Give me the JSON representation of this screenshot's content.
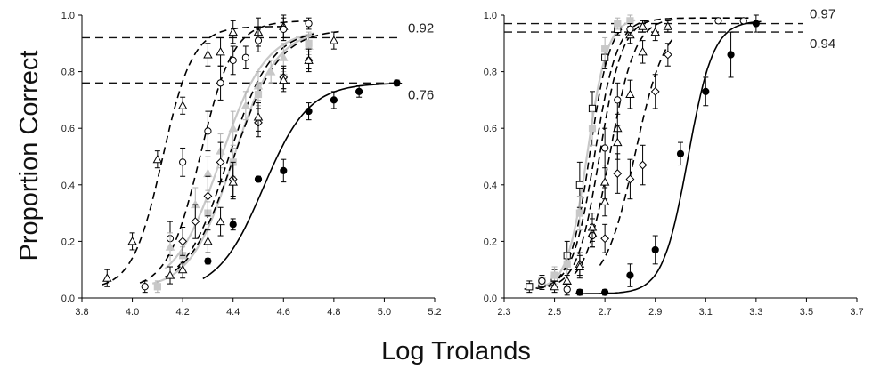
{
  "figure": {
    "ylabel": "Proportion Correct",
    "xlabel": "Log Trolands"
  },
  "chart_data": [
    {
      "type": "scatter",
      "title": "",
      "xlim": [
        3.8,
        5.2
      ],
      "ylim": [
        0.0,
        1.0
      ],
      "xticks": [
        "3.8",
        "4.0",
        "4.2",
        "4.4",
        "4.6",
        "4.8",
        "5.0",
        "5.2"
      ],
      "yticks": [
        "0.0",
        "0.2",
        "0.4",
        "0.6",
        "0.8",
        "1.0"
      ],
      "grid": false,
      "reference_lines": [
        {
          "y": 0.92,
          "label": "0.92"
        },
        {
          "y": 0.76,
          "label": "0.76"
        }
      ],
      "series": [
        {
          "marker": "triangle-open",
          "color": "#000000",
          "line": "dashed",
          "fit": {
            "lower": 0.03,
            "upper": 0.96,
            "threshold": 4.12,
            "slope": 0.06
          },
          "x": [
            3.9,
            4.0,
            4.1,
            4.2,
            4.3,
            4.35,
            4.4,
            4.5,
            4.6
          ],
          "y": [
            0.07,
            0.2,
            0.49,
            0.68,
            0.86,
            0.87,
            0.94,
            0.94,
            0.96
          ],
          "err": [
            0.03,
            0.03,
            0.03,
            0.03,
            0.04,
            0.05,
            0.04,
            0.05,
            0.04
          ]
        },
        {
          "marker": "circle-open",
          "color": "#000000",
          "line": "dashed",
          "fit": {
            "lower": 0.03,
            "upper": 0.98,
            "threshold": 4.27,
            "slope": 0.065
          },
          "x": [
            4.05,
            4.15,
            4.2,
            4.3,
            4.35,
            4.4,
            4.45,
            4.5,
            4.6,
            4.7
          ],
          "y": [
            0.04,
            0.21,
            0.48,
            0.59,
            0.76,
            0.84,
            0.85,
            0.91,
            0.95,
            0.97
          ],
          "err": [
            0.02,
            0.06,
            0.05,
            0.07,
            0.06,
            0.05,
            0.04,
            0.04,
            0.04,
            0.02
          ]
        },
        {
          "marker": "triangle-filled",
          "color": "#c8c8c8",
          "line": "solid",
          "fit": {
            "lower": 0.03,
            "upper": 0.95,
            "threshold": 4.35,
            "slope": 0.09
          },
          "x": [
            4.15,
            4.25,
            4.3,
            4.35,
            4.4,
            4.45,
            4.5,
            4.55,
            4.6,
            4.7
          ],
          "y": [
            0.18,
            0.33,
            0.44,
            0.52,
            0.6,
            0.68,
            0.75,
            0.8,
            0.85,
            0.89
          ],
          "err": [
            0.05,
            0.06,
            0.06,
            0.06,
            0.06,
            0.05,
            0.05,
            0.04,
            0.05,
            0.04
          ]
        },
        {
          "marker": "square-filled",
          "color": "#c8c8c8",
          "line": "solid",
          "fit": {
            "lower": 0.03,
            "upper": 0.95,
            "threshold": 4.4,
            "slope": 0.085
          },
          "x": [
            4.1,
            4.2,
            4.3,
            4.4,
            4.5,
            4.6,
            4.7
          ],
          "y": [
            0.04,
            0.15,
            0.3,
            0.48,
            0.72,
            0.78,
            0.9
          ],
          "err": [
            0.02,
            0.03,
            0.04,
            0.05,
            0.04,
            0.04,
            0.04
          ]
        },
        {
          "marker": "diamond-open",
          "color": "#000000",
          "line": "dashed",
          "fit": {
            "lower": 0.03,
            "upper": 0.95,
            "threshold": 4.38,
            "slope": 0.085
          },
          "x": [
            4.2,
            4.25,
            4.3,
            4.35,
            4.4,
            4.5,
            4.6,
            4.7
          ],
          "y": [
            0.2,
            0.27,
            0.36,
            0.48,
            0.42,
            0.62,
            0.78,
            0.84
          ],
          "err": [
            0.05,
            0.06,
            0.07,
            0.07,
            0.06,
            0.05,
            0.04,
            0.04
          ]
        },
        {
          "marker": "triangle-open-2",
          "color": "#000000",
          "line": "dashed",
          "fit": {
            "lower": 0.03,
            "upper": 0.95,
            "threshold": 4.4,
            "slope": 0.09
          },
          "x": [
            4.15,
            4.2,
            4.3,
            4.35,
            4.4,
            4.5,
            4.6,
            4.7,
            4.8
          ],
          "y": [
            0.08,
            0.1,
            0.2,
            0.27,
            0.41,
            0.64,
            0.77,
            0.84,
            0.91
          ],
          "err": [
            0.03,
            0.03,
            0.04,
            0.05,
            0.06,
            0.05,
            0.04,
            0.03,
            0.03
          ]
        },
        {
          "marker": "circle-filled",
          "color": "#000000",
          "line": "solid",
          "fit": {
            "lower": 0.02,
            "upper": 0.76,
            "threshold": 4.52,
            "slope": 0.09
          },
          "x": [
            4.3,
            4.4,
            4.5,
            4.6,
            4.7,
            4.8,
            4.9,
            5.05
          ],
          "y": [
            0.13,
            0.26,
            0.42,
            0.45,
            0.66,
            0.7,
            0.73,
            0.76
          ],
          "err": [
            0.01,
            0.02,
            0.01,
            0.04,
            0.03,
            0.03,
            0.02,
            0.01
          ]
        }
      ]
    },
    {
      "type": "scatter",
      "title": "",
      "xlim": [
        2.3,
        3.7
      ],
      "ylim": [
        0.0,
        1.0
      ],
      "xticks": [
        "2.3",
        "2.5",
        "2.7",
        "2.9",
        "3.1",
        "3.3",
        "3.5",
        "3.7"
      ],
      "yticks": [
        "0.0",
        "0.2",
        "0.4",
        "0.6",
        "0.8",
        "1.0"
      ],
      "grid": false,
      "reference_lines": [
        {
          "y": 0.97,
          "label": "0.97"
        },
        {
          "y": 0.94,
          "label": "0.94"
        }
      ],
      "series": [
        {
          "marker": "square-open",
          "color": "#000000",
          "line": "dashed",
          "fit": {
            "lower": 0.03,
            "upper": 0.99,
            "threshold": 2.64,
            "slope": 0.04
          },
          "x": [
            2.4,
            2.45,
            2.5,
            2.55,
            2.6,
            2.65,
            2.7,
            2.75
          ],
          "y": [
            0.04,
            0.05,
            0.07,
            0.15,
            0.4,
            0.67,
            0.85,
            0.95
          ],
          "err": [
            0.02,
            0.02,
            0.03,
            0.05,
            0.08,
            0.06,
            0.04,
            0.02
          ]
        },
        {
          "marker": "square-filled",
          "color": "#c8c8c8",
          "line": "solid",
          "fit": {
            "lower": 0.03,
            "upper": 0.99,
            "threshold": 2.63,
            "slope": 0.04
          },
          "x": [
            2.45,
            2.5,
            2.55,
            2.6,
            2.65,
            2.7,
            2.75,
            2.8
          ],
          "y": [
            0.06,
            0.08,
            0.12,
            0.3,
            0.6,
            0.88,
            0.97,
            0.98
          ],
          "err": [
            0.02,
            0.03,
            0.04,
            0.06,
            0.06,
            0.04,
            0.02,
            0.02
          ]
        },
        {
          "marker": "triangle-open",
          "color": "#000000",
          "line": "dashed",
          "fit": {
            "lower": 0.03,
            "upper": 0.99,
            "threshold": 2.66,
            "slope": 0.045
          },
          "x": [
            2.5,
            2.55,
            2.6,
            2.65,
            2.7,
            2.75,
            2.8,
            2.85
          ],
          "y": [
            0.04,
            0.06,
            0.12,
            0.23,
            0.41,
            0.6,
            0.93,
            0.96
          ],
          "err": [
            0.02,
            0.02,
            0.04,
            0.05,
            0.06,
            0.05,
            0.03,
            0.02
          ]
        },
        {
          "marker": "circle-open",
          "color": "#000000",
          "line": "dashed",
          "fit": {
            "lower": 0.03,
            "upper": 0.99,
            "threshold": 2.68,
            "slope": 0.045
          },
          "x": [
            2.45,
            2.55,
            2.65,
            2.7,
            2.75,
            2.8,
            3.15,
            3.25
          ],
          "y": [
            0.06,
            0.03,
            0.22,
            0.53,
            0.7,
            0.95,
            0.98,
            0.98
          ],
          "err": [
            0.02,
            0.02,
            0.04,
            0.07,
            0.06,
            0.02,
            0.01,
            0.01
          ]
        },
        {
          "marker": "triangle-open-2",
          "color": "#000000",
          "line": "dashed",
          "fit": {
            "lower": 0.03,
            "upper": 0.99,
            "threshold": 2.72,
            "slope": 0.05
          },
          "x": [
            2.6,
            2.65,
            2.7,
            2.75,
            2.8,
            2.85,
            2.9,
            2.95
          ],
          "y": [
            0.11,
            0.25,
            0.34,
            0.55,
            0.72,
            0.87,
            0.94,
            0.96
          ],
          "err": [
            0.04,
            0.05,
            0.05,
            0.06,
            0.05,
            0.04,
            0.03,
            0.02
          ]
        },
        {
          "marker": "diamond-open",
          "color": "#000000",
          "line": "dashed",
          "fit": {
            "lower": 0.03,
            "upper": 0.99,
            "threshold": 2.82,
            "slope": 0.06
          },
          "x": [
            2.7,
            2.75,
            2.8,
            2.85,
            2.9,
            2.95
          ],
          "y": [
            0.21,
            0.44,
            0.42,
            0.47,
            0.73,
            0.86
          ],
          "err": [
            0.05,
            0.07,
            0.07,
            0.07,
            0.06,
            0.04
          ]
        },
        {
          "marker": "circle-filled",
          "color": "#000000",
          "line": "solid",
          "fit": {
            "lower": 0.015,
            "upper": 0.98,
            "threshold": 3.03,
            "slope": 0.05
          },
          "x": [
            2.6,
            2.7,
            2.8,
            2.9,
            3.0,
            3.1,
            3.2,
            3.3
          ],
          "y": [
            0.02,
            0.02,
            0.08,
            0.17,
            0.51,
            0.73,
            0.86,
            0.97
          ],
          "err": [
            0.01,
            0.01,
            0.04,
            0.05,
            0.04,
            0.05,
            0.08,
            0.03
          ]
        }
      ]
    }
  ]
}
